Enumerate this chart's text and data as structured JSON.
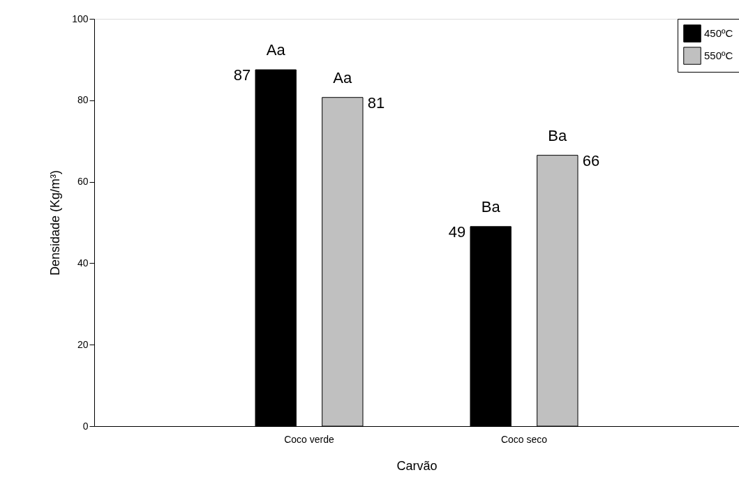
{
  "chart_data": {
    "type": "bar",
    "xlabel": "Carvão",
    "ylabel": "Densidade (Kg/m³)",
    "categories": [
      "Coco verde",
      "Coco seco"
    ],
    "series": [
      {
        "name": "450ºC",
        "color": "#000000",
        "values": [
          87.5,
          49
        ],
        "value_labels": [
          "87",
          "49"
        ]
      },
      {
        "name": "550ºC",
        "color": "#c0c0c0",
        "values": [
          80.7,
          66.5
        ],
        "value_labels": [
          "81",
          "66"
        ]
      }
    ],
    "ylim": [
      0,
      100
    ],
    "yticks": [
      0,
      20,
      40,
      60,
      80,
      100
    ],
    "grid": false,
    "legend": "top right",
    "annotations": [
      "Aa",
      "Aa",
      "Ba",
      "Ba"
    ]
  }
}
